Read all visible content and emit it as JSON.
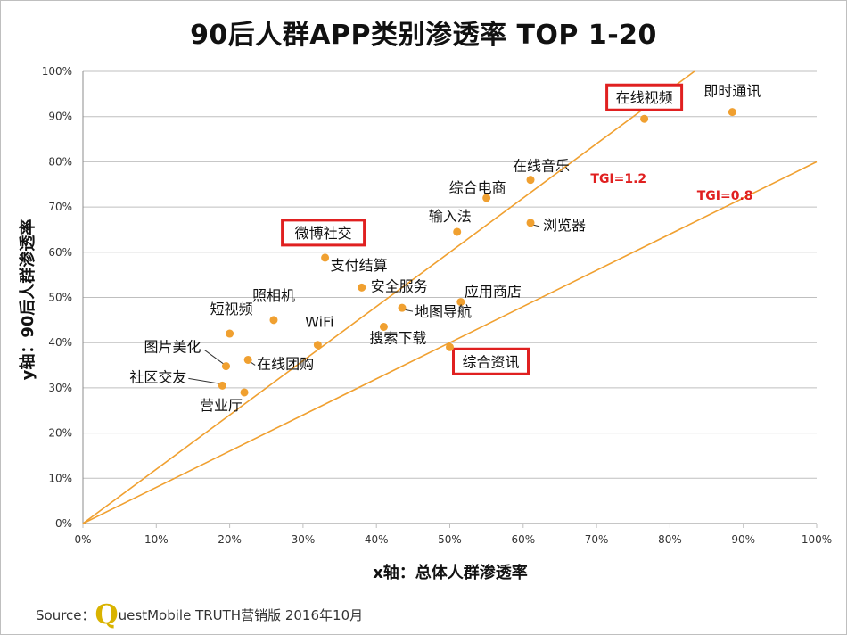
{
  "page": {
    "title": "90后人群APP类别渗透率 TOP 1-20",
    "source_prefix": "Source：",
    "source_logo_letter": "Q",
    "source_text": "uestMobile TRUTH营销版 2016年10月"
  },
  "colors": {
    "point": "#f0a030",
    "line": "#f0a030",
    "highlight": "#e02020",
    "grid": "#bfbfbf"
  },
  "chart_data": {
    "type": "scatter",
    "title": "90后人群APP类别渗透率 TOP 1-20",
    "xlabel": "x轴：总体人群渗透率",
    "ylabel": "y轴：90后人群渗透率",
    "xlim": [
      0,
      100
    ],
    "ylim": [
      0,
      100
    ],
    "xticks": [
      "0%",
      "10%",
      "20%",
      "30%",
      "40%",
      "50%",
      "60%",
      "70%",
      "80%",
      "90%",
      "100%"
    ],
    "yticks": [
      "0%",
      "10%",
      "20%",
      "30%",
      "40%",
      "50%",
      "60%",
      "70%",
      "80%",
      "90%",
      "100%"
    ],
    "grid": true,
    "points": [
      {
        "name": "即时通讯",
        "x": 88.5,
        "y": 91,
        "highlight": false
      },
      {
        "name": "在线视频",
        "x": 76.5,
        "y": 89.5,
        "highlight": true
      },
      {
        "name": "在线音乐",
        "x": 61,
        "y": 76,
        "highlight": false
      },
      {
        "name": "综合电商",
        "x": 55,
        "y": 72,
        "highlight": false
      },
      {
        "name": "浏览器",
        "x": 61,
        "y": 66.5,
        "highlight": false
      },
      {
        "name": "输入法",
        "x": 51,
        "y": 64.5,
        "highlight": false
      },
      {
        "name": "微博社交",
        "x": 33,
        "y": 58.8,
        "highlight": true
      },
      {
        "name": "支付结算",
        "x": 33,
        "y": 58.8,
        "highlight": false
      },
      {
        "name": "安全服务",
        "x": 38,
        "y": 52.2,
        "highlight": false
      },
      {
        "name": "应用商店",
        "x": 51.5,
        "y": 49,
        "highlight": false
      },
      {
        "name": "照相机",
        "x": 26,
        "y": 45,
        "highlight": false
      },
      {
        "name": "地图导航",
        "x": 43.5,
        "y": 47.7,
        "highlight": false
      },
      {
        "name": "短视频",
        "x": 20,
        "y": 42,
        "highlight": false
      },
      {
        "name": "WiFi",
        "x": 32,
        "y": 39.5,
        "highlight": false
      },
      {
        "name": "搜索下载",
        "x": 41,
        "y": 43.5,
        "highlight": false
      },
      {
        "name": "综合资讯",
        "x": 50,
        "y": 39,
        "highlight": true
      },
      {
        "name": "图片美化",
        "x": 19.5,
        "y": 34.8,
        "highlight": false
      },
      {
        "name": "在线团购",
        "x": 22.5,
        "y": 36.2,
        "highlight": false
      },
      {
        "name": "社区交友",
        "x": 19,
        "y": 30.5,
        "highlight": false
      },
      {
        "name": "营业厅",
        "x": 22,
        "y": 29,
        "highlight": false
      }
    ],
    "reference_lines": [
      {
        "label": "TGI=1.2",
        "slope": 1.2
      },
      {
        "label": "TGI=0.8",
        "slope": 0.8
      }
    ]
  }
}
